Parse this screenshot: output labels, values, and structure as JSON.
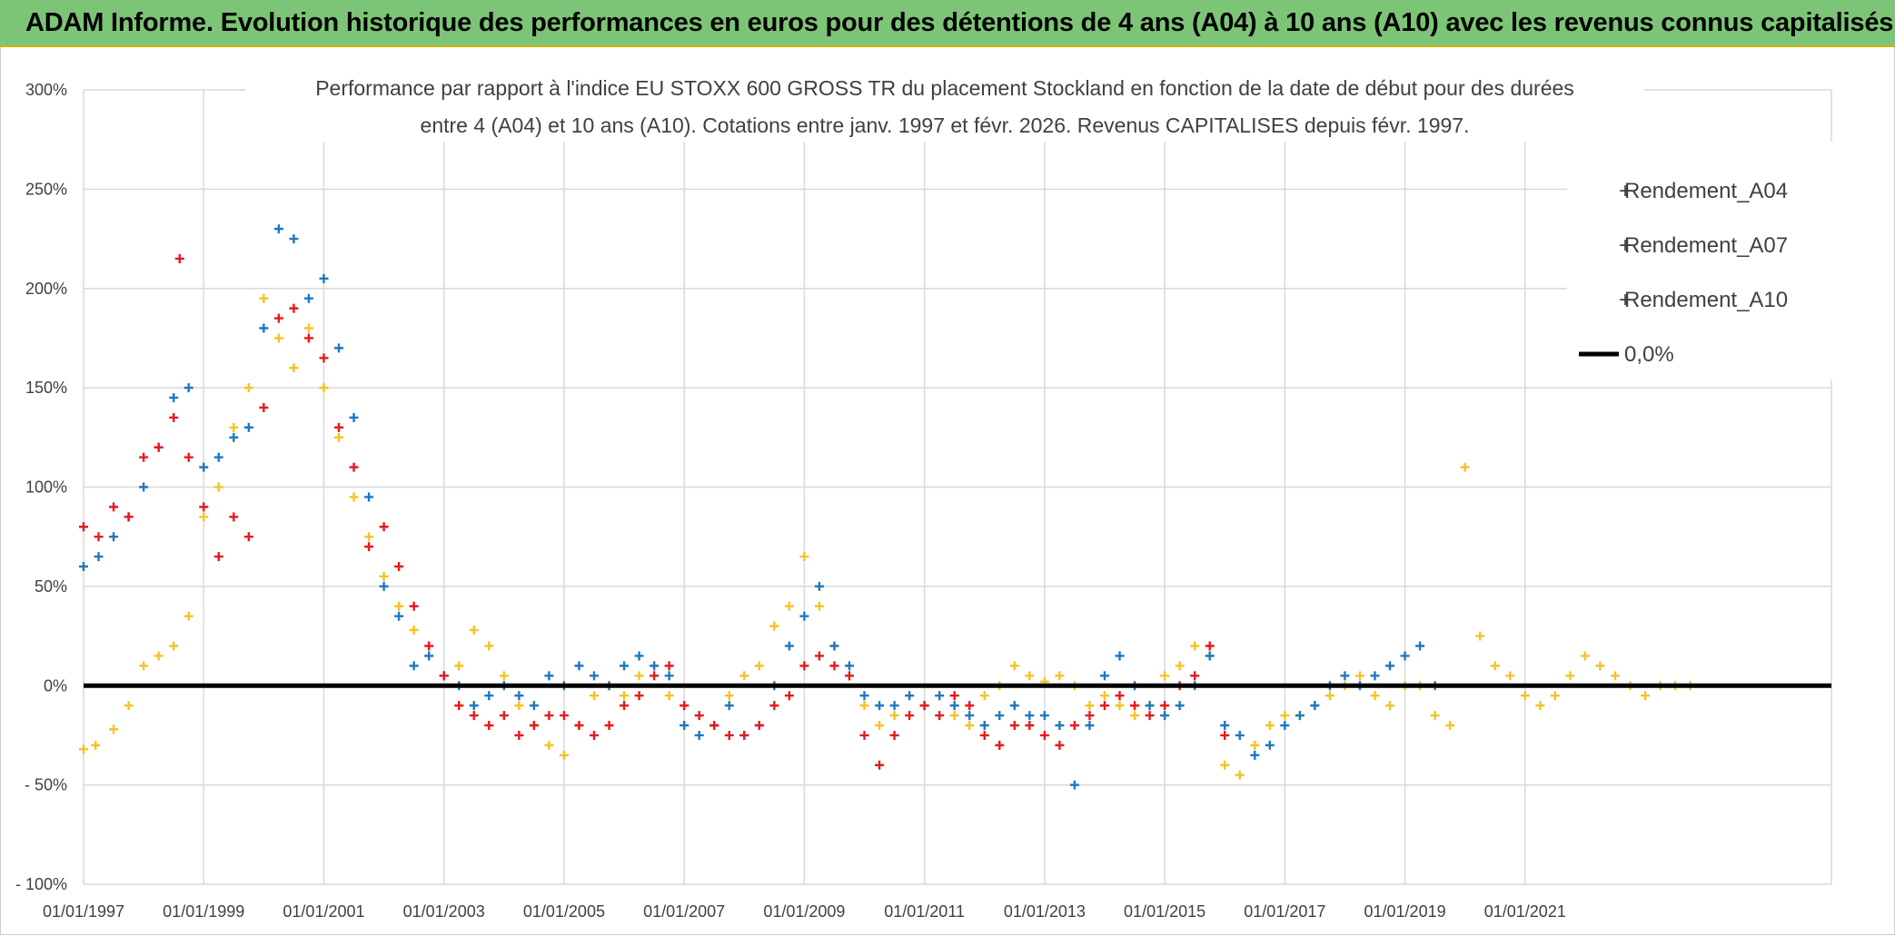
{
  "page": {
    "title": "ADAM Informe. Evolution historique des performances en euros pour des détentions de 4 ans (A04) à 10 ans (A10) avec les revenus connus capitalisés"
  },
  "chart_data": {
    "type": "scatter",
    "title_line1": "Performance par rapport à l'indice EU STOXX 600 GROSS TR  du placement Stockland en fonction de la date de début pour des durées",
    "title_line2": "entre 4 (A04) et 10 ans (A10). Cotations entre janv. 1997 et févr. 2026. Revenus CAPITALISES depuis févr. 1997.",
    "xlabel": "",
    "ylabel": "",
    "x_unit": "year (decimal)",
    "xlim": [
      1997.0,
      2026.1
    ],
    "ylim": [
      -100,
      300
    ],
    "y_ticks": [
      300,
      250,
      200,
      150,
      100,
      50,
      0,
      -50,
      -100
    ],
    "y_tick_labels": [
      "300%",
      "250%",
      "200%",
      "150%",
      "100%",
      "50%",
      "0%",
      "- 50%",
      "- 100%"
    ],
    "x_ticks": [
      1997,
      1999,
      2001,
      2003,
      2005,
      2007,
      2009,
      2011,
      2013,
      2015,
      2017,
      2019,
      2021
    ],
    "x_tick_labels": [
      "01/01/1997",
      "01/01/1999",
      "01/01/2001",
      "01/01/2003",
      "01/01/2005",
      "01/01/2007",
      "01/01/2009",
      "01/01/2011",
      "01/01/2013",
      "01/01/2015",
      "01/01/2017",
      "01/01/2019",
      "01/01/2021"
    ],
    "grid": true,
    "legend_position": "top-right",
    "reference_line": {
      "name": "0,0%",
      "value": 0,
      "color": "#000000"
    },
    "series": [
      {
        "name": "Rendement_A04",
        "color": "#f5c325",
        "marker": "plus",
        "x": [
          1997.0,
          1997.2,
          1997.5,
          1997.75,
          1998.0,
          1998.25,
          1998.5,
          1998.75,
          1999.0,
          1999.25,
          1999.5,
          1999.75,
          2000.0,
          2000.25,
          2000.5,
          2000.75,
          2001.0,
          2001.25,
          2001.5,
          2001.75,
          2002.0,
          2002.25,
          2002.5,
          2002.75,
          2003.0,
          2003.25,
          2003.5,
          2003.75,
          2004.0,
          2004.25,
          2004.5,
          2004.75,
          2005.0,
          2005.25,
          2005.5,
          2005.75,
          2006.0,
          2006.25,
          2006.5,
          2006.75,
          2007.0,
          2007.25,
          2007.5,
          2007.75,
          2008.0,
          2008.25,
          2008.5,
          2008.75,
          2009.0,
          2009.25,
          2009.5,
          2009.75,
          2010.0,
          2010.25,
          2010.5,
          2010.75,
          2011.0,
          2011.25,
          2011.5,
          2011.75,
          2012.0,
          2012.25,
          2012.5,
          2012.75,
          2013.0,
          2013.25,
          2013.5,
          2013.75,
          2014.0,
          2014.25,
          2014.5,
          2014.75,
          2015.0,
          2015.25,
          2015.5,
          2015.75,
          2016.0,
          2016.25,
          2016.5,
          2016.75,
          2017.0,
          2017.25,
          2017.5,
          2017.75,
          2018.0,
          2018.25,
          2018.5,
          2018.75,
          2019.0,
          2019.25,
          2019.5,
          2019.75,
          2020.0,
          2020.25,
          2020.5,
          2020.75,
          2021.0,
          2021.25,
          2021.5,
          2021.75,
          2022.0,
          2022.25,
          2022.5,
          2022.75,
          2023.0,
          2023.25,
          2023.5,
          2023.75
        ],
        "y": [
          -32,
          -30,
          -22,
          -10,
          10,
          15,
          20,
          35,
          85,
          100,
          130,
          150,
          195,
          175,
          160,
          180,
          150,
          125,
          95,
          75,
          55,
          40,
          28,
          15,
          5,
          10,
          28,
          20,
          5,
          -10,
          -20,
          -30,
          -35,
          -20,
          -5,
          0,
          -5,
          5,
          10,
          -5,
          -10,
          -15,
          -20,
          -5,
          5,
          10,
          30,
          40,
          65,
          40,
          20,
          5,
          -10,
          -20,
          -15,
          -5,
          -10,
          -5,
          -15,
          -20,
          -5,
          0,
          10,
          5,
          2,
          5,
          0,
          -10,
          -5,
          -10,
          -15,
          -10,
          5,
          10,
          20,
          15,
          -40,
          -45,
          -30,
          -20,
          -15,
          -15,
          -10,
          -5,
          0,
          5,
          -5,
          -10,
          0,
          0,
          -15,
          -20,
          110,
          25,
          10,
          5,
          -5,
          -10,
          -5,
          5,
          15,
          10,
          5,
          0,
          -5,
          0,
          0,
          0
        ]
      },
      {
        "name": "Rendement_A07",
        "color": "#1f77c2",
        "marker": "plus",
        "x": [
          1997.0,
          1997.25,
          1997.5,
          1997.75,
          1998.0,
          1998.25,
          1998.5,
          1998.75,
          1999.0,
          1999.25,
          1999.5,
          1999.75,
          2000.0,
          2000.25,
          2000.5,
          2000.75,
          2001.0,
          2001.25,
          2001.5,
          2001.75,
          2002.0,
          2002.25,
          2002.5,
          2002.75,
          2003.0,
          2003.25,
          2003.5,
          2003.75,
          2004.0,
          2004.25,
          2004.5,
          2004.75,
          2005.0,
          2005.25,
          2005.5,
          2005.75,
          2006.0,
          2006.25,
          2006.5,
          2006.75,
          2007.0,
          2007.25,
          2007.5,
          2007.75,
          2008.0,
          2008.25,
          2008.5,
          2008.75,
          2009.0,
          2009.25,
          2009.5,
          2009.75,
          2010.0,
          2010.25,
          2010.5,
          2010.75,
          2011.0,
          2011.25,
          2011.5,
          2011.75,
          2012.0,
          2012.25,
          2012.5,
          2012.75,
          2013.0,
          2013.25,
          2013.5,
          2013.75,
          2014.0,
          2014.25,
          2014.5,
          2014.75,
          2015.0,
          2015.25,
          2015.5,
          2015.75,
          2016.0,
          2016.25,
          2016.5,
          2016.75,
          2017.0,
          2017.25,
          2017.5,
          2017.75,
          2018.0,
          2018.25,
          2018.5,
          2018.75,
          2019.0,
          2019.25,
          2019.5
        ],
        "y": [
          60,
          65,
          75,
          85,
          100,
          120,
          145,
          150,
          110,
          115,
          125,
          130,
          180,
          230,
          225,
          195,
          205,
          170,
          135,
          95,
          50,
          35,
          10,
          15,
          5,
          0,
          -10,
          -5,
          0,
          -5,
          -10,
          5,
          0,
          10,
          5,
          0,
          10,
          15,
          10,
          5,
          -20,
          -25,
          -20,
          -10,
          -25,
          -20,
          0,
          20,
          35,
          50,
          20,
          10,
          -5,
          -10,
          -10,
          -5,
          -10,
          -5,
          -10,
          -15,
          -20,
          -15,
          -10,
          -15,
          -15,
          -20,
          -50,
          -20,
          5,
          15,
          0,
          -10,
          -15,
          -10,
          0,
          15,
          -20,
          -25,
          -35,
          -30,
          -20,
          -15,
          -10,
          0,
          5,
          0,
          5,
          10,
          15,
          20,
          0
        ]
      },
      {
        "name": "Rendement_A10",
        "color": "#e8191c",
        "marker": "plus",
        "x": [
          1997.0,
          1997.25,
          1997.5,
          1997.75,
          1998.0,
          1998.25,
          1998.5,
          1998.6,
          1998.75,
          1999.0,
          1999.25,
          1999.5,
          1999.75,
          2000.0,
          2000.25,
          2000.5,
          2000.75,
          2001.0,
          2001.25,
          2001.5,
          2001.75,
          2002.0,
          2002.25,
          2002.5,
          2002.75,
          2003.0,
          2003.25,
          2003.5,
          2003.75,
          2004.0,
          2004.25,
          2004.5,
          2004.75,
          2005.0,
          2005.25,
          2005.5,
          2005.75,
          2006.0,
          2006.25,
          2006.5,
          2006.75,
          2007.0,
          2007.25,
          2007.5,
          2007.75,
          2008.0,
          2008.25,
          2008.5,
          2008.75,
          2009.0,
          2009.25,
          2009.5,
          2009.75,
          2010.0,
          2010.25,
          2010.5,
          2010.75,
          2011.0,
          2011.25,
          2011.5,
          2011.75,
          2012.0,
          2012.25,
          2012.5,
          2012.75,
          2013.0,
          2013.25,
          2013.5,
          2013.75,
          2014.0,
          2014.25,
          2014.5,
          2014.75,
          2015.0,
          2015.25,
          2015.5,
          2015.75,
          2016.0
        ],
        "y": [
          80,
          75,
          90,
          85,
          115,
          120,
          135,
          215,
          115,
          90,
          65,
          85,
          75,
          140,
          185,
          190,
          175,
          165,
          130,
          110,
          70,
          80,
          60,
          40,
          20,
          5,
          -10,
          -15,
          -20,
          -15,
          -25,
          -20,
          -15,
          -15,
          -20,
          -25,
          -20,
          -10,
          -5,
          5,
          10,
          -10,
          -15,
          -20,
          -25,
          -25,
          -20,
          -10,
          -5,
          10,
          15,
          10,
          5,
          -25,
          -40,
          -25,
          -15,
          -10,
          -15,
          -5,
          -10,
          -25,
          -30,
          -20,
          -20,
          -25,
          -30,
          -20,
          -15,
          -10,
          -5,
          -10,
          -15,
          -10,
          0,
          5,
          20,
          -25
        ]
      }
    ],
    "legend": [
      "Rendement_A04",
      "Rendement_A07",
      "Rendement_A10",
      "0,0%"
    ]
  }
}
